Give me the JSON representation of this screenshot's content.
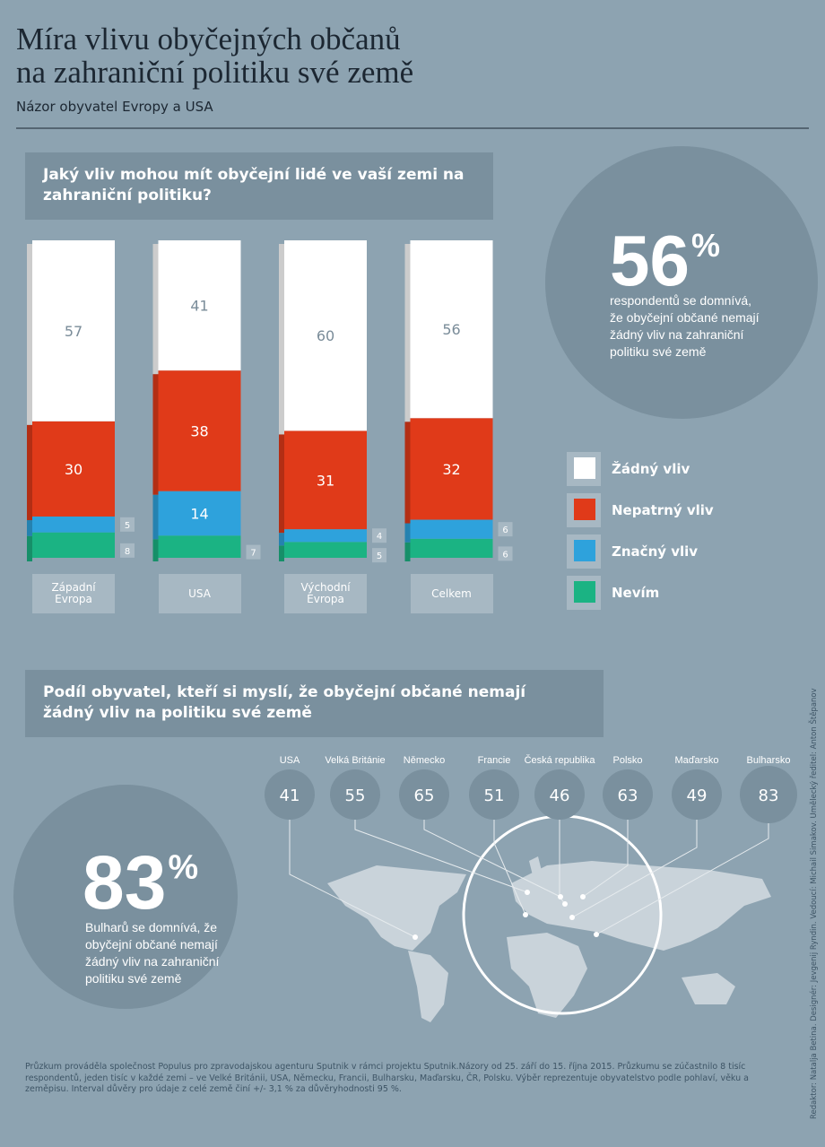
{
  "header": {
    "title_line1": "Míra vlivu obyčejných občanů",
    "title_line2": "na zahraniční politiku své země",
    "subtitle": "Názor obyvatel Evropy a USA"
  },
  "chart_data": {
    "type": "stacked-bar",
    "title": "Jaký vliv mohou mít obyčejní lidé ve vaší zemi na zahraniční politiku?",
    "categories": [
      "Západní Evropa",
      "USA",
      "Východní Evropa",
      "Celkem"
    ],
    "series": [
      {
        "name": "Nevím",
        "color": "#1bb383",
        "values": [
          8,
          7,
          5,
          6
        ]
      },
      {
        "name": "Značný vliv",
        "color": "#2ea2dc",
        "values": [
          5,
          14,
          4,
          6
        ]
      },
      {
        "name": "Nepatrný vliv",
        "color": "#e03a19",
        "values": [
          30,
          38,
          31,
          32
        ]
      },
      {
        "name": "Žádný vliv",
        "color": "#ffffff",
        "values": [
          57,
          41,
          60,
          56
        ]
      }
    ]
  },
  "callout_top": {
    "value": 56,
    "unit": "%",
    "text": "respondentů se domnívá, že obyčejní občané nemají žádný vliv na zahraniční politiku své země"
  },
  "map_section": {
    "title": "Podíl obyvatel, kteří si myslí, že obyčejní občané nemají žádný vliv na politiku své země",
    "countries": [
      {
        "name": "USA",
        "value": 41
      },
      {
        "name": "Velká Británie",
        "value": 55
      },
      {
        "name": "Německo",
        "value": 65
      },
      {
        "name": "Francie",
        "value": 51
      },
      {
        "name": "Česká republika",
        "value": 46
      },
      {
        "name": "Polsko",
        "value": 63
      },
      {
        "name": "Maďarsko",
        "value": 49
      },
      {
        "name": "Bulharsko",
        "value": 83
      }
    ]
  },
  "callout_bottom": {
    "value": 83,
    "unit": "%",
    "text": "Bulharů se domnívá, že obyčejní občané nemají žádný vliv na zahraniční politiku své země"
  },
  "footer": "Průzkum prováděla společnost Populus pro zpravodajskou agenturu Sputnik v rámci projektu Sputnik.Názory od 25. září do 15. října 2015. Průzkumu se zúčastnilo 8 tisíc respondentů, jeden tisíc v každé zemi – ve Velké Británii, USA, Německu, Francii, Bulharsku, Maďarsku, ČR, Polsku. Výběr reprezentuje obyvatelstvo podle pohlaví, věku a zeměpisu. Interval důvěry pro údaje z celé země činí +/- 3,1 % za důvěryhodnosti 95 %.",
  "credits": "Redaktor: Natalja Betina. Designér: Jevgenij Ryndin. Vedoucí: Michail Simakov. Umělecký ředitel: Anton Štěpanov"
}
